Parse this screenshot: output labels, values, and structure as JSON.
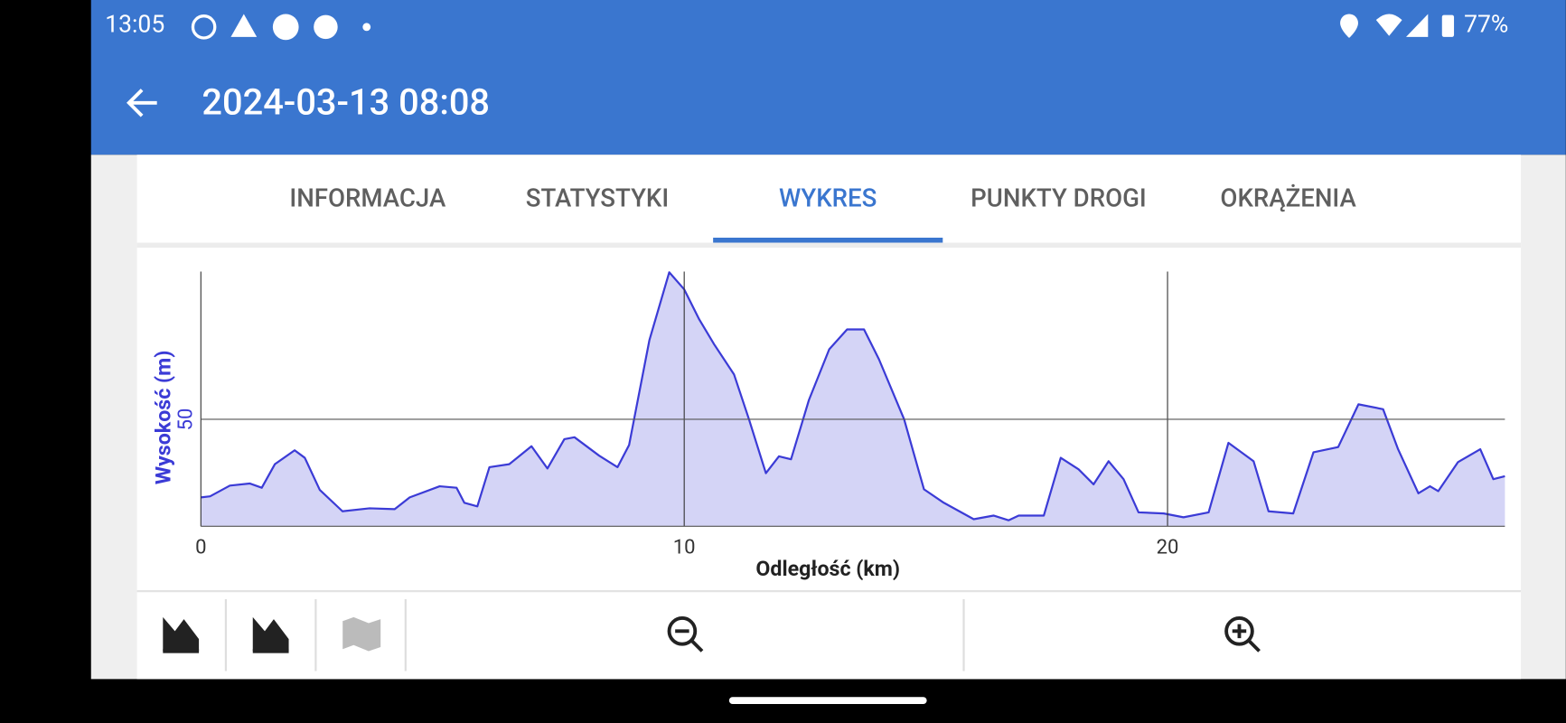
{
  "status_bar": {
    "time": "13:05",
    "battery": "77%"
  },
  "app_bar": {
    "title": "2024-03-13 08:08"
  },
  "tabs": [
    "INFORMACJA",
    "STATYSTYKI",
    "WYKRES",
    "PUNKTY DROGI",
    "OKRĄŻENIA"
  ],
  "active_tab": 2,
  "chart_data": {
    "type": "area",
    "x_label": "Odległość (km)",
    "y_label": "Wysokość (m)",
    "x": [
      0,
      0.19,
      0.6,
      1.01,
      1.26,
      1.53,
      1.94,
      2.15,
      2.46,
      2.93,
      3.49,
      4.01,
      4.32,
      4.94,
      5.29,
      5.45,
      5.72,
      5.97,
      6.38,
      6.84,
      7.17,
      7.52,
      7.73,
      8.24,
      8.62,
      8.86,
      9.28,
      9.69,
      10,
      10.31,
      10.62,
      11.03,
      11.34,
      11.69,
      11.96,
      12.21,
      12.58,
      13,
      13.37,
      13.72,
      14.03,
      14.55,
      14.96,
      15.37,
      15.99,
      16.4,
      16.71,
      16.92,
      17.44,
      17.79,
      18.16,
      18.47,
      18.78,
      19.09,
      19.4,
      19.92,
      20.33,
      20.85,
      21.26,
      21.78,
      22.09,
      22.6,
      23.02,
      23.53,
      23.95,
      24.46,
      24.77,
      25.19,
      25.43,
      25.6,
      26.01,
      26.47,
      26.74,
      26.98
    ],
    "values": [
      13.5,
      14,
      19,
      20,
      18,
      29,
      35.5,
      32,
      17,
      7,
      8.4,
      8,
      13.5,
      18.7,
      18,
      11,
      9.3,
      27.6,
      29,
      37.4,
      27,
      40.7,
      41.6,
      33,
      27.6,
      38,
      87,
      118.7,
      110.7,
      96.7,
      85,
      71,
      50,
      24.8,
      32.7,
      31.3,
      59,
      82.7,
      92,
      92,
      78,
      50,
      17.3,
      11,
      3.3,
      5,
      2.8,
      5,
      5,
      32,
      26.6,
      19.6,
      30.4,
      22,
      6.5,
      6,
      4.2,
      6.5,
      39,
      30.4,
      7,
      6,
      34.6,
      37,
      57,
      54.7,
      36,
      15.4,
      18.7,
      16.4,
      30,
      36,
      22,
      23.4
    ],
    "color": "#3b3bd6",
    "fill": "#d4d4f6",
    "xlim": [
      0,
      26.98
    ],
    "xticks": [
      0,
      10,
      20
    ],
    "ylim": [
      0,
      119
    ],
    "yticks": [
      50
    ],
    "grid": true
  }
}
